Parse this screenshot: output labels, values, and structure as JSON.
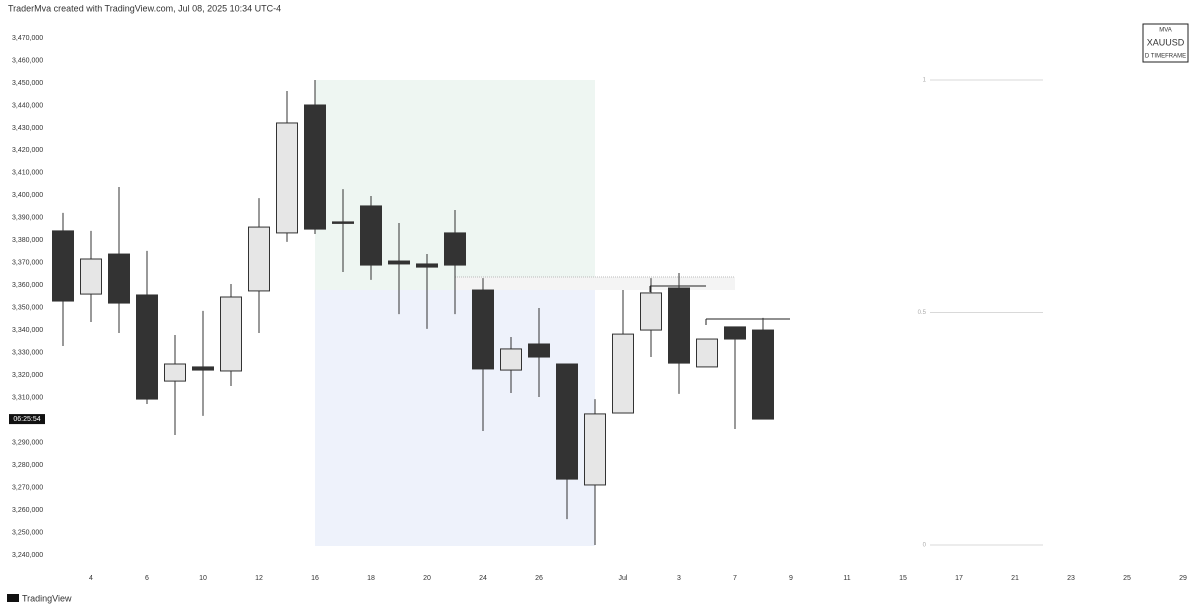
{
  "chart_data": {
    "type": "candlestick",
    "attribution": "TraderMva created with TradingView.com, Jul 08, 2025 10:34 UTC-4",
    "watermark": {
      "top": "MVA",
      "symbol": "XAUUSD",
      "bottom": "D TIMEFRAME"
    },
    "brand": "TradingView",
    "countdown": "06:25:54",
    "up_color": "#e6e6e6",
    "down_color": "#333333",
    "categories": [
      null,
      "4",
      null,
      "6",
      null,
      "10",
      null,
      "12",
      null,
      "16",
      null,
      "18",
      null,
      "20",
      null,
      "24",
      null,
      "26",
      null,
      null,
      "Jul",
      null,
      "3",
      null,
      "7",
      null,
      "9",
      null,
      "11",
      null,
      "15",
      null,
      "17",
      null,
      "21",
      null,
      "23",
      null,
      "25",
      null,
      "29"
    ],
    "open": [
      3384200,
      3356100,
      3373900,
      3355700,
      3317400,
      3323700,
      3321900,
      3357500,
      3383300,
      3440200,
      3388200,
      3395300,
      3370800,
      3369500,
      3383300,
      3357900,
      3322300,
      3333900,
      3325000,
      3271200,
      3303200,
      3340100,
      3358800,
      3323700,
      3341500,
      3340100,
      null,
      null,
      null,
      null,
      null,
      null,
      null,
      null,
      null,
      null,
      null,
      null,
      null,
      null,
      null
    ],
    "high": [
      3392200,
      3384200,
      3403700,
      3375300,
      3337900,
      3348600,
      3360600,
      3398800,
      3446400,
      3451300,
      3402800,
      3399700,
      3387700,
      3373900,
      3393500,
      3363200,
      3337000,
      3349900,
      3325000,
      3309400,
      3357900,
      3363200,
      3365500,
      3336100,
      3341500,
      3345500,
      null,
      null,
      null,
      null,
      null,
      null,
      null,
      null,
      null,
      null,
      null,
      null,
      null,
      null,
      null
    ],
    "low": [
      3333000,
      3343700,
      3338800,
      3307200,
      3293400,
      3301900,
      3315200,
      3338800,
      3379300,
      3382800,
      3365900,
      3362400,
      3347200,
      3340600,
      3347200,
      3295200,
      3312100,
      3310300,
      3256000,
      3244500,
      3303200,
      3328100,
      3311700,
      3323700,
      3296100,
      3300500,
      null,
      null,
      null,
      null,
      null,
      null,
      null,
      null,
      null,
      null,
      null,
      null,
      null,
      null,
      null
    ],
    "close": [
      3353000,
      3371700,
      3352100,
      3309400,
      3325000,
      3322300,
      3354800,
      3385900,
      3432200,
      3385000,
      3387700,
      3369000,
      3369500,
      3368100,
      3369000,
      3322800,
      3331700,
      3328100,
      3273800,
      3302800,
      3338300,
      3356600,
      3325400,
      3336100,
      3336100,
      3300500,
      null,
      null,
      null,
      null,
      null,
      null,
      null,
      null,
      null,
      null,
      null,
      null,
      null,
      null,
      null
    ],
    "ylim": [
      3235600,
      3478000
    ],
    "yticks": [
      {
        "value": 3240000,
        "label": "3,240,000"
      },
      {
        "value": 3250000,
        "label": "3,250,000"
      },
      {
        "value": 3260000,
        "label": "3,260,000"
      },
      {
        "value": 3270000,
        "label": "3,270,000"
      },
      {
        "value": 3280000,
        "label": "3,280,000"
      },
      {
        "value": 3290000,
        "label": "3,290,000"
      },
      {
        "value": 3310000,
        "label": "3,310,000"
      },
      {
        "value": 3320000,
        "label": "3,320,000"
      },
      {
        "value": 3330000,
        "label": "3,330,000"
      },
      {
        "value": 3340000,
        "label": "3,340,000"
      },
      {
        "value": 3350000,
        "label": "3,350,000"
      },
      {
        "value": 3360000,
        "label": "3,360,000"
      },
      {
        "value": 3370000,
        "label": "3,370,000"
      },
      {
        "value": 3380000,
        "label": "3,380,000"
      },
      {
        "value": 3390000,
        "label": "3,390,000"
      },
      {
        "value": 3400000,
        "label": "3,400,000"
      },
      {
        "value": 3410000,
        "label": "3,410,000"
      },
      {
        "value": 3420000,
        "label": "3,420,000"
      },
      {
        "value": 3430000,
        "label": "3,430,000"
      },
      {
        "value": 3440000,
        "label": "3,440,000"
      },
      {
        "value": 3450000,
        "label": "3,450,000"
      },
      {
        "value": 3460000,
        "label": "3,460,000"
      },
      {
        "value": 3470000,
        "label": "3,470,000"
      }
    ],
    "fib": {
      "levels": [
        1,
        0.5,
        0
      ],
      "high": 3451300,
      "low": 3244500
    }
  }
}
